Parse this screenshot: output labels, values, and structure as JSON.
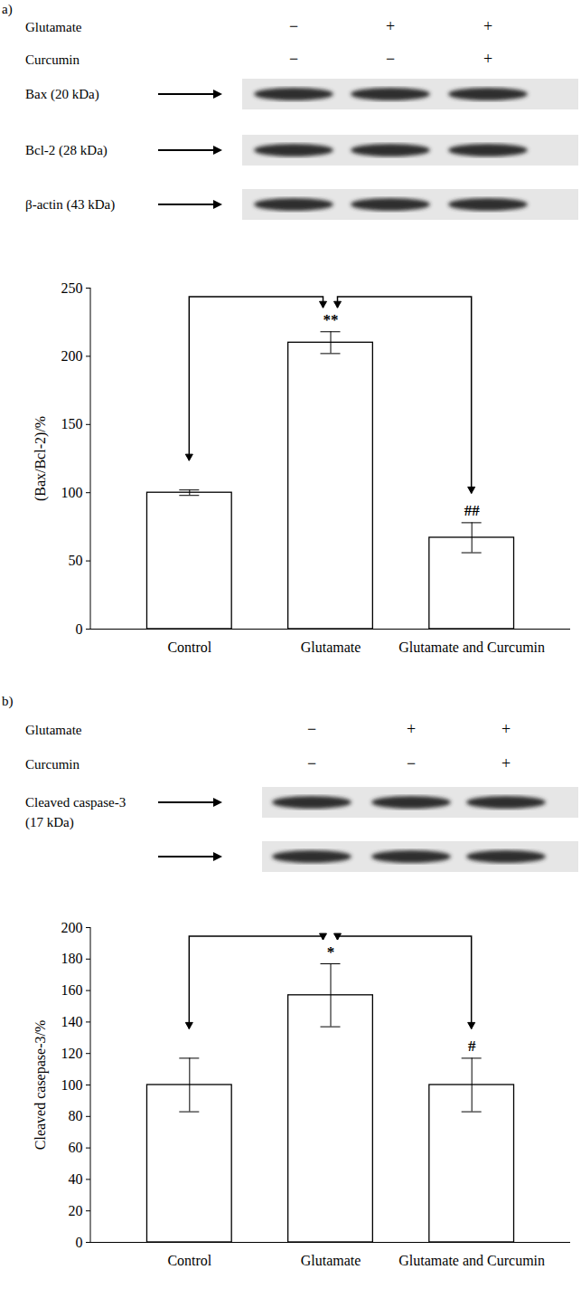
{
  "chart_data": [
    {
      "type": "bar",
      "panel": "a)",
      "treatments": [
        {
          "name": "Glutamate",
          "marks": [
            "−",
            "+",
            "+"
          ]
        },
        {
          "name": "Curcumin",
          "marks": [
            "−",
            "−",
            "+"
          ]
        }
      ],
      "bands": [
        {
          "lines": [
            "Bax (20 kDa)"
          ]
        },
        {
          "lines": [
            "Bcl-2 (28 kDa)"
          ]
        },
        {
          "lines": [
            "β-actin (43 kDa)"
          ]
        }
      ],
      "y_label": "(Bax/Bcl-2)/%",
      "categories": [
        "Control",
        "Glutamate",
        "Glutamate and Curcumin"
      ],
      "values": [
        100,
        210,
        67
      ],
      "errors": [
        2,
        8,
        11
      ],
      "color": "#ffffff",
      "annotations": [
        {
          "category": "Glutamate",
          "text": "**"
        },
        {
          "category": "Glutamate and Curcumin",
          "text": "##"
        }
      ],
      "ylim": [
        0,
        250
      ],
      "yticks": [
        0,
        50,
        100,
        150,
        200,
        250
      ],
      "grid": false
    },
    {
      "type": "bar",
      "panel": "b)",
      "treatments": [
        {
          "name": "Glutamate",
          "marks": [
            "−",
            "+",
            "+"
          ]
        },
        {
          "name": "Curcumin",
          "marks": [
            "−",
            "−",
            "+"
          ]
        }
      ],
      "bands": [
        {
          "lines": [
            "Cleaved caspase-3",
            "(17 kDa)"
          ]
        },
        {
          "lines": []
        }
      ],
      "y_label": "Cleaved casepase-3/%",
      "categories": [
        "Control",
        "Glutamate",
        "Glutamate and Curcumin"
      ],
      "values": [
        100,
        157,
        100
      ],
      "errors": [
        17,
        20,
        17
      ],
      "color": "#ffffff",
      "annotations": [
        {
          "category": "Glutamate",
          "text": "*"
        },
        {
          "category": "Glutamate and Curcumin",
          "text": "#"
        }
      ],
      "ylim": [
        0,
        200
      ],
      "yticks": [
        0,
        20,
        40,
        60,
        80,
        100,
        120,
        140,
        160,
        180,
        200
      ],
      "grid": false
    }
  ]
}
